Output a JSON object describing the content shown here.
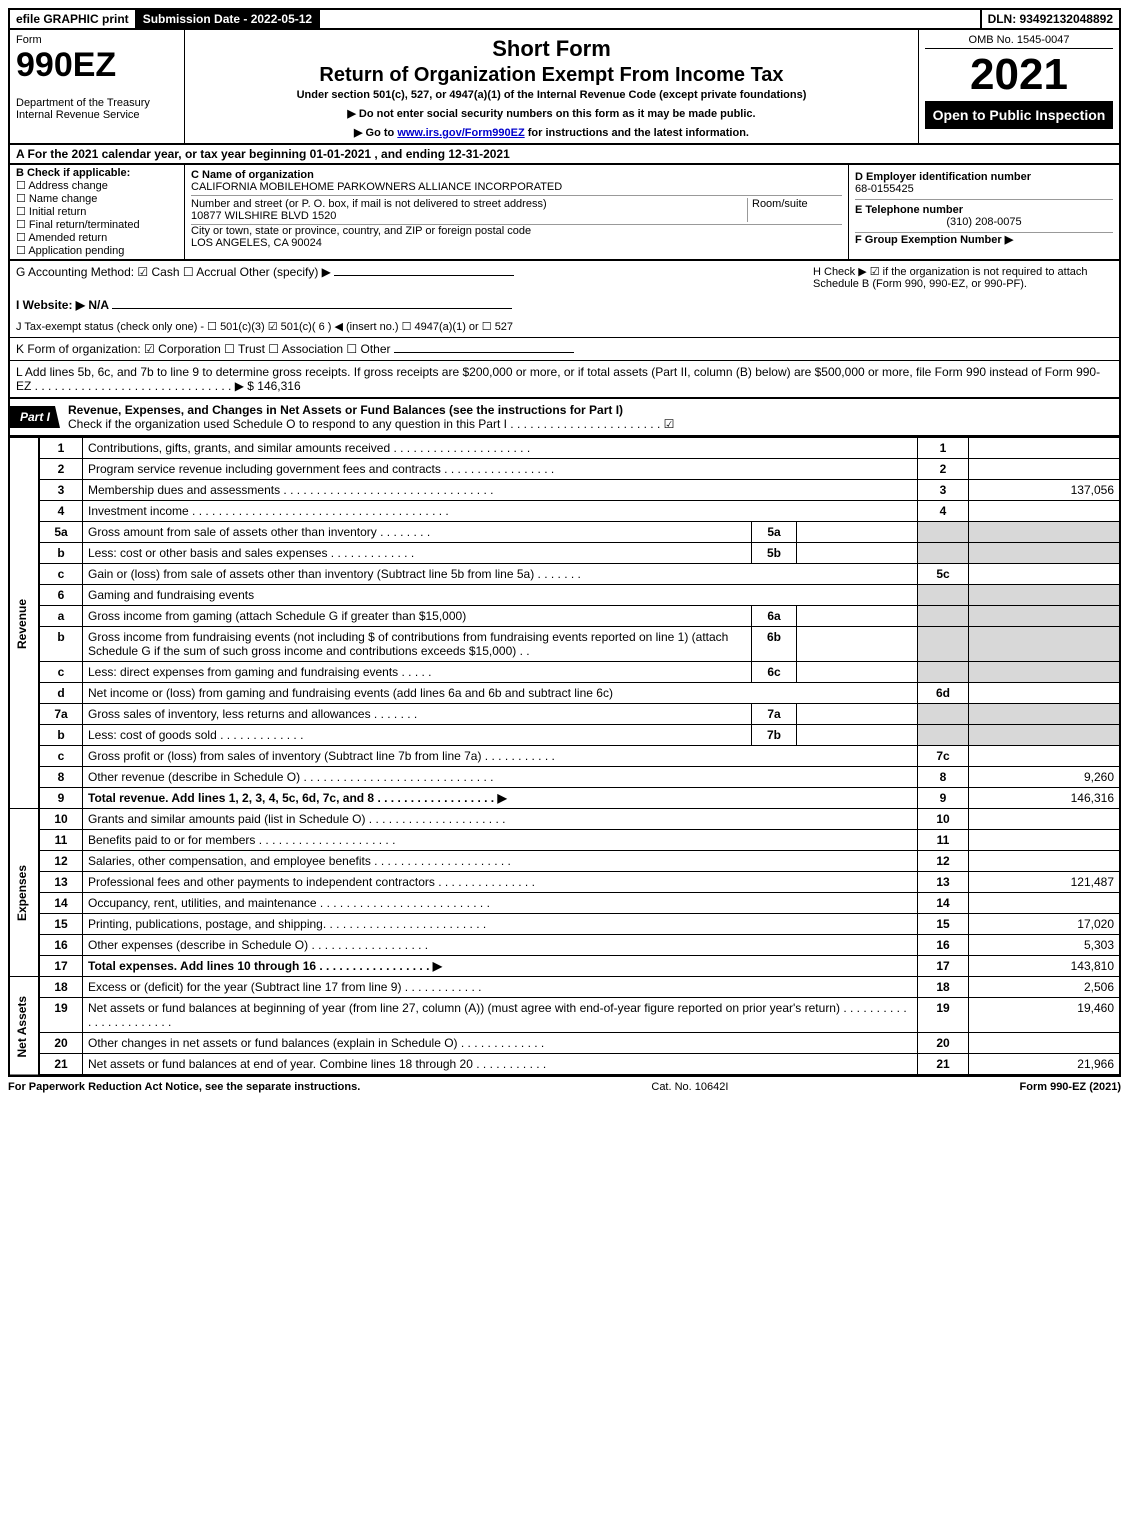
{
  "topbar": {
    "efile": "efile GRAPHIC print",
    "sub_date_label": "Submission Date - 2022-05-12",
    "dln": "DLN: 93492132048892"
  },
  "header": {
    "form_word": "Form",
    "form_num": "990EZ",
    "dept": "Department of the Treasury\nInternal Revenue Service",
    "short": "Short Form",
    "title": "Return of Organization Exempt From Income Tax",
    "under": "Under section 501(c), 527, or 4947(a)(1) of the Internal Revenue Code (except private foundations)",
    "note1": "▶ Do not enter social security numbers on this form as it may be made public.",
    "note2_a": "▶ Go to ",
    "note2_link": "www.irs.gov/Form990EZ",
    "note2_b": " for instructions and the latest information.",
    "omb": "OMB No. 1545-0047",
    "year": "2021",
    "open": "Open to Public Inspection"
  },
  "lineA": "A  For the 2021 calendar year, or tax year beginning 01-01-2021 , and ending 12-31-2021",
  "B": {
    "label": "B  Check if applicable:",
    "items": [
      "Address change",
      "Name change",
      "Initial return",
      "Final return/terminated",
      "Amended return",
      "Application pending"
    ]
  },
  "C": {
    "name_lbl": "C Name of organization",
    "name": "CALIFORNIA MOBILEHOME PARKOWNERS ALLIANCE INCORPORATED",
    "street_lbl": "Number and street (or P. O. box, if mail is not delivered to street address)",
    "room_lbl": "Room/suite",
    "street": "10877 WILSHIRE BLVD 1520",
    "city_lbl": "City or town, state or province, country, and ZIP or foreign postal code",
    "city": "LOS ANGELES, CA  90024"
  },
  "D": {
    "ein_lbl": "D Employer identification number",
    "ein": "68-0155425",
    "tel_lbl": "E Telephone number",
    "tel": "(310) 208-0075",
    "grp_lbl": "F Group Exemption Number  ▶"
  },
  "G": "G Accounting Method:  ☑ Cash  ☐ Accrual  Other (specify) ▶",
  "H": "H  Check ▶ ☑ if the organization is not required to attach Schedule B (Form 990, 990-EZ, or 990-PF).",
  "I": "I Website: ▶ N/A",
  "J": "J Tax-exempt status (check only one) - ☐ 501(c)(3)  ☑ 501(c)( 6 ) ◀ (insert no.)  ☐ 4947(a)(1) or  ☐ 527",
  "K": "K Form of organization:  ☑ Corporation  ☐ Trust  ☐ Association  ☐ Other",
  "L": "L Add lines 5b, 6c, and 7b to line 9 to determine gross receipts. If gross receipts are $200,000 or more, or if total assets (Part II, column (B) below) are $500,000 or more, file Form 990 instead of Form 990-EZ . . . . . . . . . . . . . . . . . . . . . . . . . . . . . . ▶ $ 146,316",
  "part1": {
    "tab": "Part I",
    "title": "Revenue, Expenses, and Changes in Net Assets or Fund Balances (see the instructions for Part I)",
    "check": "Check if the organization used Schedule O to respond to any question in this Part I . . . . . . . . . . . . . . . . . . . . . . .  ☑"
  },
  "sides": {
    "rev": "Revenue",
    "exp": "Expenses",
    "net": "Net Assets"
  },
  "rows": [
    {
      "ln": "1",
      "txt": "Contributions, gifts, grants, and similar amounts received . . . . . . . . . . . . . . . . . . . . .",
      "num": "1",
      "val": ""
    },
    {
      "ln": "2",
      "txt": "Program service revenue including government fees and contracts . . . . . . . . . . . . . . . . .",
      "num": "2",
      "val": ""
    },
    {
      "ln": "3",
      "txt": "Membership dues and assessments . . . . . . . . . . . . . . . . . . . . . . . . . . . . . . . .",
      "num": "3",
      "val": "137,056"
    },
    {
      "ln": "4",
      "txt": "Investment income . . . . . . . . . . . . . . . . . . . . . . . . . . . . . . . . . . . . . . .",
      "num": "4",
      "val": ""
    },
    {
      "ln": "5a",
      "txt": "Gross amount from sale of assets other than inventory . . . . . . . .",
      "mid": "5a",
      "midv": "",
      "shade": true
    },
    {
      "ln": "b",
      "txt": "Less: cost or other basis and sales expenses . . . . . . . . . . . . .",
      "mid": "5b",
      "midv": "",
      "shade": true
    },
    {
      "ln": "c",
      "txt": "Gain or (loss) from sale of assets other than inventory (Subtract line 5b from line 5a) . . . . . . .",
      "num": "5c",
      "val": ""
    },
    {
      "ln": "6",
      "txt": "Gaming and fundraising events",
      "shade": true
    },
    {
      "ln": "a",
      "txt": "Gross income from gaming (attach Schedule G if greater than $15,000)",
      "mid": "6a",
      "midv": "",
      "shade": true
    },
    {
      "ln": "b",
      "txt": "Gross income from fundraising events (not including $                    of contributions from fundraising events reported on line 1) (attach Schedule G if the sum of such gross income and contributions exceeds $15,000)   .   .",
      "mid": "6b",
      "midv": "",
      "shade": true
    },
    {
      "ln": "c",
      "txt": "Less: direct expenses from gaming and fundraising events  .  .  .  .  .",
      "mid": "6c",
      "midv": "",
      "shade": true
    },
    {
      "ln": "d",
      "txt": "Net income or (loss) from gaming and fundraising events (add lines 6a and 6b and subtract line 6c)",
      "num": "6d",
      "val": ""
    },
    {
      "ln": "7a",
      "txt": "Gross sales of inventory, less returns and allowances . . . . . . .",
      "mid": "7a",
      "midv": "",
      "shade": true
    },
    {
      "ln": "b",
      "txt": "Less: cost of goods sold         .   .   .   .   .   .   .   .   .   .   .   .   .",
      "mid": "7b",
      "midv": "",
      "shade": true
    },
    {
      "ln": "c",
      "txt": "Gross profit or (loss) from sales of inventory (Subtract line 7b from line 7a) . . . . . . . . . . .",
      "num": "7c",
      "val": ""
    },
    {
      "ln": "8",
      "txt": "Other revenue (describe in Schedule O) . . . . . . . . . . . . . . . . . . . . . . . . . . . . .",
      "num": "8",
      "val": "9,260"
    },
    {
      "ln": "9",
      "txt": "Total revenue. Add lines 1, 2, 3, 4, 5c, 6d, 7c, and 8  . . . . . . . . . . . . . . . . . .   ▶",
      "num": "9",
      "val": "146,316",
      "bold": true
    }
  ],
  "exp_rows": [
    {
      "ln": "10",
      "txt": "Grants and similar amounts paid (list in Schedule O) . . . . . . . . . . . . . . . . . . . . .",
      "num": "10",
      "val": ""
    },
    {
      "ln": "11",
      "txt": "Benefits paid to or for members       .   .   .   .   .   .   .   .   .   .   .   .   .   .   .   .   .   .   .   .   .",
      "num": "11",
      "val": ""
    },
    {
      "ln": "12",
      "txt": "Salaries, other compensation, and employee benefits . . . . . . . . . . . . . . . . . . . . .",
      "num": "12",
      "val": ""
    },
    {
      "ln": "13",
      "txt": "Professional fees and other payments to independent contractors . . . . . . . . . . . . . . .",
      "num": "13",
      "val": "121,487"
    },
    {
      "ln": "14",
      "txt": "Occupancy, rent, utilities, and maintenance . . . . . . . . . . . . . . . . . . . . . . . . . .",
      "num": "14",
      "val": ""
    },
    {
      "ln": "15",
      "txt": "Printing, publications, postage, and shipping. . . . . . . . . . . . . . . . . . . . . . . . .",
      "num": "15",
      "val": "17,020"
    },
    {
      "ln": "16",
      "txt": "Other expenses (describe in Schedule O)      .   .   .   .   .   .   .   .   .   .   .   .   .   .   .   .   .   .",
      "num": "16",
      "val": "5,303"
    },
    {
      "ln": "17",
      "txt": "Total expenses. Add lines 10 through 16      .   .   .   .   .   .   .   .   .   .   .   .   .   .   .   .   .   ▶",
      "num": "17",
      "val": "143,810",
      "bold": true
    }
  ],
  "net_rows": [
    {
      "ln": "18",
      "txt": "Excess or (deficit) for the year (Subtract line 17 from line 9)        .   .   .   .   .   .   .   .   .   .   .   .",
      "num": "18",
      "val": "2,506"
    },
    {
      "ln": "19",
      "txt": "Net assets or fund balances at beginning of year (from line 27, column (A)) (must agree with end-of-year figure reported on prior year's return) . . . . . . . . . . . . . . . . . . . . . . .",
      "num": "19",
      "val": "19,460"
    },
    {
      "ln": "20",
      "txt": "Other changes in net assets or fund balances (explain in Schedule O) . . . . . . . . . . . . .",
      "num": "20",
      "val": ""
    },
    {
      "ln": "21",
      "txt": "Net assets or fund balances at end of year. Combine lines 18 through 20 . . . . . . . . . . .",
      "num": "21",
      "val": "21,966"
    }
  ],
  "footer": {
    "left": "For Paperwork Reduction Act Notice, see the separate instructions.",
    "center": "Cat. No. 10642I",
    "right": "Form 990-EZ (2021)"
  }
}
